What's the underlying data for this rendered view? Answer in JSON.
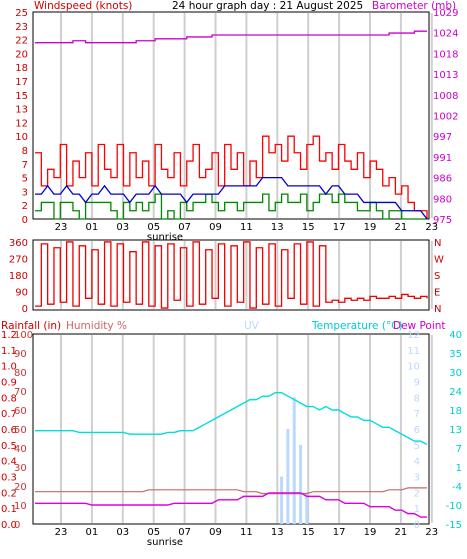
{
  "header": {
    "wind_label": "Windspeed (knots)",
    "title": "24 hour graph day : 21 August 2025",
    "baro_label": "Barometer (mb)"
  },
  "panel3_header": {
    "rain_label": "Rainfall (in)",
    "humidity_label": "Humidity %",
    "uv_label": "UV",
    "temp_label": "Temperature (°C)",
    "dew_label": "Dew Point"
  },
  "sunrise_label": "sunrise",
  "colors": {
    "wind_axis": "#cc0000",
    "baro_axis": "#cc00cc",
    "wind_gust": "#ff0000",
    "wind_avg": "#0000cc",
    "wind_low": "#008800",
    "barometer": "#cc00cc",
    "direction": "#ee0000",
    "dir_axis": "#cc0000",
    "rain_axis": "#cc0000",
    "humidity_axis": "#cc3333",
    "humidity": "#cc6666",
    "uv": "#bbd8ff",
    "temperature": "#00dddd",
    "temp_axis": "#00cccc",
    "dewpoint": "#dd00dd"
  },
  "chart_data": [
    {
      "type": "line",
      "x_ticks": [
        "23",
        "01",
        "03",
        "05",
        "07",
        "09",
        "11",
        "13",
        "15",
        "17",
        "19",
        "21",
        "23"
      ],
      "left_axis": {
        "ticks": [
          "0",
          "2",
          "3",
          "5",
          "7",
          "8",
          "10",
          "12",
          "13",
          "15",
          "17",
          "18",
          "20",
          "22",
          "23",
          "25"
        ],
        "ylim": [
          0,
          25
        ]
      },
      "right_axis": {
        "ticks": [
          "975",
          "980",
          "986",
          "991",
          "997",
          "1002",
          "1008",
          "1013",
          "1018",
          "1024",
          "1029"
        ],
        "ylim": [
          975,
          1029
        ]
      },
      "series": [
        {
          "key": "gust",
          "values": [
            8,
            4,
            6,
            5,
            9,
            4,
            7,
            5,
            8,
            4,
            9,
            6,
            5,
            9,
            4,
            8,
            5,
            7,
            4,
            9,
            6,
            5,
            8,
            4,
            7,
            9,
            5,
            6,
            8,
            4,
            9,
            6,
            8,
            4,
            7,
            5,
            10,
            8,
            9,
            7,
            10,
            8,
            6,
            9,
            10,
            7,
            8,
            6,
            9,
            7,
            6,
            8,
            5,
            7,
            6,
            4,
            5,
            3,
            4,
            2,
            1,
            1,
            0
          ]
        },
        {
          "key": "avg",
          "values": [
            3,
            3,
            4,
            3,
            3,
            4,
            3,
            3,
            2,
            3,
            3,
            4,
            3,
            3,
            3,
            2,
            3,
            3,
            3,
            4,
            3,
            3,
            3,
            3,
            2,
            3,
            3,
            3,
            3,
            3,
            4,
            4,
            4,
            4,
            4,
            4,
            5,
            5,
            5,
            5,
            4,
            4,
            4,
            4,
            4,
            4,
            3,
            4,
            4,
            3,
            3,
            3,
            2,
            2,
            2,
            2,
            2,
            2,
            1,
            1,
            1,
            1,
            0
          ]
        },
        {
          "key": "low",
          "values": [
            1,
            2,
            2,
            0,
            2,
            2,
            1,
            0,
            2,
            2,
            2,
            2,
            1,
            0,
            2,
            1,
            2,
            1,
            2,
            3,
            0,
            1,
            0,
            2,
            1,
            2,
            2,
            3,
            2,
            1,
            2,
            2,
            1,
            2,
            2,
            2,
            3,
            1,
            2,
            3,
            2,
            2,
            3,
            1,
            2,
            3,
            3,
            2,
            3,
            2,
            2,
            1,
            1,
            2,
            1,
            0,
            1,
            1,
            0,
            0,
            0,
            0,
            0
          ]
        },
        {
          "key": "barometer",
          "values": [
            1021,
            1021,
            1021,
            1021,
            1021,
            1021,
            1021.5,
            1021.5,
            1021,
            1021,
            1021,
            1021,
            1021,
            1021,
            1021,
            1021,
            1021.5,
            1021.5,
            1021.5,
            1022,
            1022,
            1022,
            1022,
            1022,
            1022.5,
            1022.5,
            1022.5,
            1022.5,
            1023,
            1023,
            1023,
            1023,
            1023,
            1023,
            1023,
            1023,
            1023,
            1023,
            1023,
            1023,
            1023,
            1023,
            1023,
            1023,
            1023,
            1023,
            1023,
            1023,
            1023,
            1023,
            1023,
            1023,
            1023,
            1023,
            1023,
            1023,
            1023.5,
            1023.5,
            1023.5,
            1023.5,
            1024,
            1024,
            1024
          ]
        }
      ]
    },
    {
      "type": "line",
      "x_ticks": [],
      "left_axis": {
        "ticks": [
          "0",
          "90",
          "180",
          "270",
          "360"
        ],
        "ylim": [
          0,
          360
        ]
      },
      "right_axis": {
        "ticks": [
          "N",
          "W",
          "S",
          "E",
          "N"
        ]
      },
      "series": [
        {
          "key": "direction",
          "values": [
            20,
            340,
            30,
            320,
            40,
            350,
            20,
            330,
            60,
            310,
            30,
            350,
            20,
            340,
            40,
            300,
            30,
            350,
            20,
            330,
            10,
            340,
            50,
            320,
            20,
            350,
            30,
            310,
            60,
            340,
            20,
            330,
            40,
            350,
            10,
            320,
            30,
            340,
            20,
            310,
            60,
            340,
            30,
            350,
            20,
            330,
            40,
            50,
            40,
            60,
            50,
            60,
            50,
            70,
            60,
            60,
            70,
            60,
            80,
            70,
            60,
            70,
            60
          ]
        }
      ]
    },
    {
      "type": "line",
      "x_ticks": [
        "23",
        "01",
        "03",
        "05",
        "07",
        "09",
        "11",
        "13",
        "15",
        "17",
        "19",
        "21",
        "23"
      ],
      "rain_axis": {
        "ticks": [
          "0.0",
          "0.1",
          "0.2",
          "0.3",
          "0.4",
          "0.5",
          "0.6",
          "0.7",
          "0.8",
          "0.9",
          "1.0",
          "1.1",
          "1.2"
        ],
        "ylim": [
          0,
          1.2
        ]
      },
      "humidity_axis": {
        "ticks": [
          "0",
          "10",
          "20",
          "30",
          "40",
          "50",
          "60",
          "70",
          "80",
          "90",
          "100"
        ],
        "ylim": [
          0,
          100
        ]
      },
      "uv_axis": {
        "ticks": [
          "0",
          "1",
          "2",
          "3",
          "4",
          "5",
          "6",
          "7",
          "8",
          "9",
          "10",
          "11",
          "12"
        ],
        "ylim": [
          0,
          12
        ]
      },
      "temp_axis": {
        "ticks": [
          "-15",
          "-10",
          "-4",
          "1",
          "7",
          "13",
          "18",
          "24",
          "30",
          "35",
          "40"
        ],
        "ylim": [
          -15,
          40
        ]
      },
      "series": [
        {
          "key": "temperature",
          "values": [
            12,
            12,
            12,
            12,
            12,
            12,
            12,
            11.5,
            11.5,
            11.5,
            11.5,
            11.5,
            11.5,
            11.5,
            11.5,
            11,
            11,
            11,
            11,
            11,
            11,
            11.5,
            11.5,
            12,
            12,
            12,
            13,
            14,
            15,
            16,
            17,
            18,
            19,
            20,
            21,
            21,
            22,
            22,
            23,
            23,
            22,
            21,
            20,
            19,
            19,
            18,
            19,
            18,
            18,
            17,
            16,
            16,
            15,
            15,
            14,
            13,
            13,
            12,
            11,
            10,
            9,
            9,
            8
          ]
        },
        {
          "key": "dewpoint",
          "values": [
            -9,
            -9,
            -9,
            -9,
            -9,
            -9,
            -9,
            -9,
            -9,
            -9.5,
            -9.5,
            -9.5,
            -9.5,
            -9.5,
            -9.5,
            -9.5,
            -9.5,
            -9.5,
            -9.5,
            -9.5,
            -9.5,
            -9.5,
            -9,
            -9,
            -9,
            -9,
            -9,
            -9,
            -9,
            -8,
            -8,
            -8,
            -8,
            -7,
            -7,
            -7,
            -7,
            -6,
            -6,
            -6,
            -6,
            -6,
            -6,
            -7,
            -7,
            -7,
            -8,
            -8,
            -8,
            -9,
            -9,
            -9,
            -9,
            -10,
            -10,
            -10,
            -10,
            -11,
            -11,
            -12,
            -12,
            -13,
            -13
          ]
        },
        {
          "key": "humidity",
          "values": [
            17,
            17,
            17,
            17,
            17,
            17,
            17,
            17,
            17,
            17,
            17,
            17,
            17,
            17,
            17,
            17,
            17,
            17,
            18,
            18,
            18,
            18,
            18,
            18,
            18,
            18,
            18,
            18,
            18,
            18,
            18,
            18,
            18,
            17,
            17,
            17,
            16,
            16,
            16,
            16,
            16,
            16,
            16,
            16,
            17,
            17,
            17,
            17,
            17,
            17,
            17,
            17,
            17,
            17,
            17,
            17,
            18,
            18,
            18,
            19,
            19,
            19,
            19
          ]
        },
        {
          "key": "uv",
          "values": [
            0,
            0,
            0,
            0,
            0,
            0,
            0,
            0,
            0,
            0,
            0,
            0,
            0,
            0,
            0,
            0,
            0,
            0,
            0,
            0,
            0,
            0,
            0,
            0,
            0,
            0,
            0,
            0,
            0,
            0,
            0,
            0,
            0,
            0,
            0,
            0,
            0,
            0,
            0,
            3,
            6,
            8,
            5,
            2,
            0,
            0,
            0,
            0,
            0,
            0,
            0,
            0,
            0,
            0,
            0,
            0,
            0,
            0,
            0,
            0,
            0,
            0,
            0
          ]
        }
      ]
    }
  ]
}
